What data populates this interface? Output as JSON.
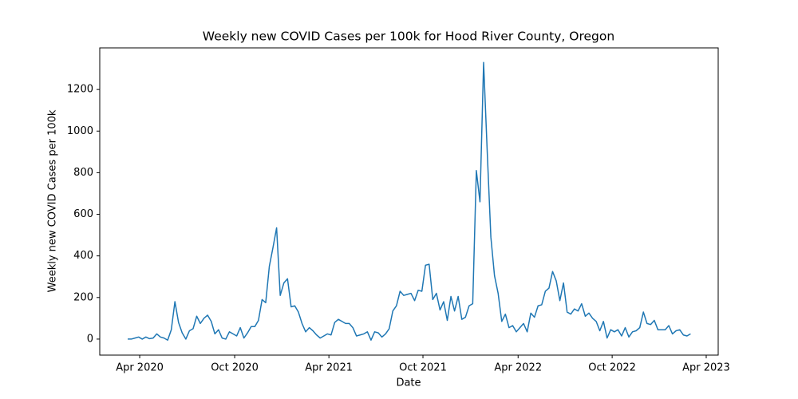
{
  "chart_data": {
    "type": "line",
    "title": "Weekly new COVID Cases per 100k for Hood River County, Oregon",
    "xlabel": "Date",
    "ylabel": "Weekly new COVID Cases per 100k",
    "categories": [
      null,
      null,
      null,
      null,
      null,
      null,
      null,
      null,
      null,
      null,
      null,
      null,
      null,
      null,
      null,
      null,
      null,
      null,
      null,
      null,
      null,
      null,
      null,
      null,
      null,
      null,
      null,
      null,
      null,
      null,
      null,
      null,
      null,
      null,
      null,
      null,
      null,
      null,
      null,
      null,
      null,
      null,
      null,
      null,
      null,
      null,
      null,
      null,
      null,
      null,
      null,
      null,
      null,
      null,
      null,
      null,
      null,
      null,
      null,
      null,
      null,
      null,
      null,
      null,
      null,
      null,
      null,
      null,
      null,
      null,
      null,
      null,
      null,
      null,
      null,
      null,
      null,
      null,
      null,
      null,
      null,
      null,
      null,
      null,
      null,
      null,
      null,
      null,
      null,
      null,
      null,
      null,
      null,
      null,
      null,
      null,
      null,
      null,
      null,
      null,
      null,
      null,
      null,
      null,
      null,
      null,
      null,
      null,
      null,
      null,
      null,
      null,
      null,
      null,
      null,
      null,
      null,
      null,
      null,
      null,
      null,
      null,
      null,
      null,
      null,
      null,
      null,
      null,
      null,
      null,
      null,
      null,
      null,
      null,
      null,
      null,
      null,
      null,
      null,
      null,
      null,
      null,
      null,
      null,
      null,
      null,
      null,
      null,
      null,
      null,
      null,
      null,
      null,
      null,
      null,
      null
    ],
    "series": [
      {
        "color": "#1f77b4",
        "values": [
          0,
          0,
          5,
          10,
          0,
          10,
          2,
          5,
          25,
          10,
          5,
          -5,
          45,
          180,
          80,
          30,
          0,
          40,
          50,
          110,
          75,
          100,
          115,
          85,
          25,
          45,
          5,
          0,
          35,
          25,
          15,
          55,
          5,
          30,
          60,
          60,
          90,
          190,
          175,
          350,
          440,
          535,
          210,
          270,
          290,
          155,
          160,
          130,
          75,
          35,
          55,
          40,
          20,
          5,
          15,
          25,
          20,
          80,
          95,
          85,
          75,
          75,
          55,
          15,
          20,
          25,
          35,
          -5,
          35,
          30,
          10,
          25,
          50,
          135,
          160,
          230,
          210,
          215,
          220,
          185,
          235,
          230,
          355,
          360,
          190,
          220,
          140,
          180,
          90,
          205,
          135,
          205,
          95,
          105,
          160,
          170,
          810,
          660,
          1330,
          900,
          490,
          305,
          220,
          85,
          120,
          55,
          65,
          35,
          55,
          75,
          35,
          125,
          105,
          160,
          165,
          230,
          245,
          325,
          280,
          185,
          270,
          130,
          120,
          145,
          135,
          170,
          110,
          125,
          100,
          85,
          40,
          85,
          5,
          45,
          35,
          45,
          15,
          55,
          10,
          35,
          40,
          55,
          130,
          75,
          70,
          90,
          45,
          45,
          45,
          65,
          25,
          40,
          45,
          20,
          15,
          25
        ]
      }
    ],
    "xlim": [
      -7.7,
      162.6
    ],
    "xticks": [
      {
        "value": 3.3,
        "label": "Apr 2020"
      },
      {
        "value": 29.45,
        "label": "Oct 2020"
      },
      {
        "value": 55.4,
        "label": "Apr 2021"
      },
      {
        "value": 81.3,
        "label": "Oct 2021"
      },
      {
        "value": 107.5,
        "label": "Apr 2022"
      },
      {
        "value": 133.4,
        "label": "Oct 2022"
      },
      {
        "value": 159.3,
        "label": "Apr 2023"
      }
    ],
    "ylim": [
      -77,
      1400
    ],
    "yticks": [
      0,
      200,
      400,
      600,
      800,
      1000,
      1200
    ]
  }
}
